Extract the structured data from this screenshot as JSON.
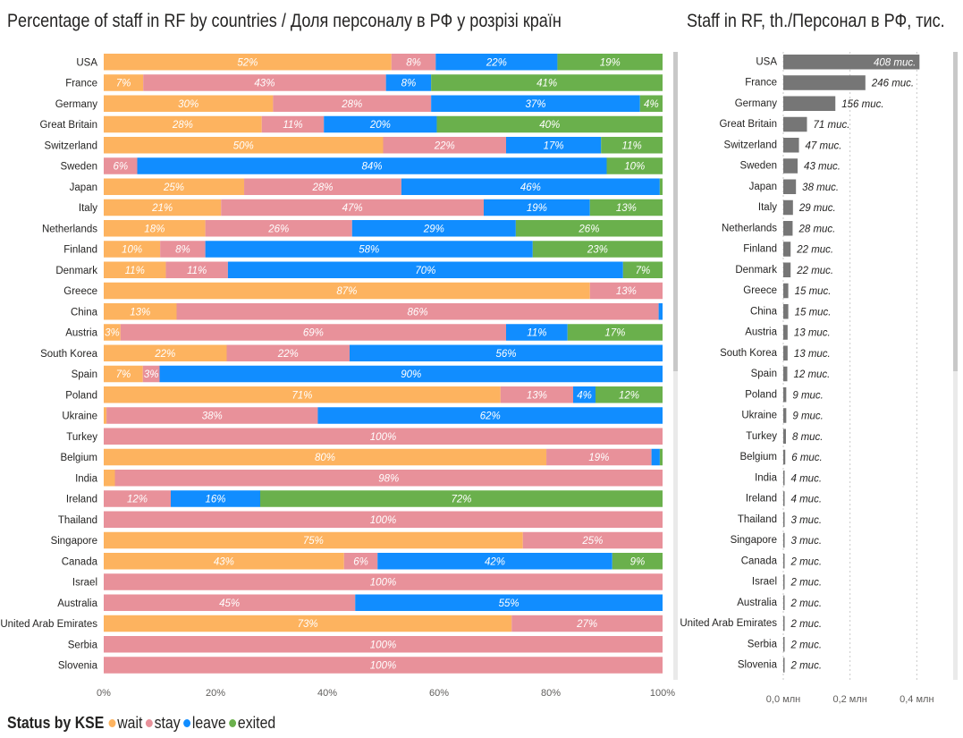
{
  "chart_data": [
    {
      "type": "bar",
      "orientation": "horizontal",
      "stacked": "100%",
      "title": "Percentage of staff in RF by countries / Доля персоналу в РФ у розрізі країн",
      "categories": [
        "USA",
        "France",
        "Germany",
        "Great Britain",
        "Switzerland",
        "Sweden",
        "Japan",
        "Italy",
        "Netherlands",
        "Finland",
        "Denmark",
        "Greece",
        "China",
        "Austria",
        "South Korea",
        "Spain",
        "Poland",
        "Ukraine",
        "Turkey",
        "Belgium",
        "India",
        "Ireland",
        "Thailand",
        "Singapore",
        "Canada",
        "Israel",
        "Australia",
        "United Arab Emirates",
        "Serbia",
        "Slovenia"
      ],
      "series": [
        {
          "name": "wait",
          "color": "#fdb35f",
          "values": [
            52,
            7,
            30,
            28,
            50,
            0,
            25,
            21,
            18,
            10,
            11,
            87,
            13,
            3,
            22,
            7,
            71,
            0.5,
            0,
            80,
            2,
            0,
            0,
            75,
            43,
            0,
            0,
            73,
            0,
            0
          ]
        },
        {
          "name": "stay",
          "color": "#e8919a",
          "values": [
            8,
            43,
            28,
            11,
            22,
            6,
            28,
            47,
            26,
            8,
            11,
            13,
            86,
            69,
            22,
            3,
            13,
            38,
            100,
            19,
            98,
            12,
            100,
            25,
            6,
            100,
            45,
            27,
            100,
            100
          ]
        },
        {
          "name": "leave",
          "color": "#118dff",
          "values": [
            22,
            8,
            37,
            20,
            17,
            84,
            46,
            19,
            29,
            58,
            70,
            0,
            0.7,
            11,
            56,
            90,
            4,
            62,
            0,
            1.5,
            0,
            16,
            0,
            0,
            42,
            0,
            55,
            0,
            0,
            0
          ]
        },
        {
          "name": "exited",
          "color": "#6ab04c",
          "values": [
            19,
            41,
            4,
            40,
            11,
            10,
            0.5,
            13,
            26,
            23,
            7,
            0,
            0,
            17,
            0,
            0,
            12,
            0,
            0,
            0.5,
            0,
            72,
            0,
            0,
            9,
            0,
            0,
            0,
            0,
            0
          ]
        }
      ],
      "data_labels": [
        [
          "52%",
          "8%",
          "22%",
          "19%"
        ],
        [
          "7%",
          "43%",
          "8%",
          "41%"
        ],
        [
          "30%",
          "28%",
          "37%",
          "4%"
        ],
        [
          "28%",
          "11%",
          "20%",
          "40%"
        ],
        [
          "50%",
          "22%",
          "17%",
          "11%"
        ],
        [
          "",
          "6%",
          "84%",
          "10%"
        ],
        [
          "25%",
          "28%",
          "46%",
          ""
        ],
        [
          "21%",
          "47%",
          "19%",
          "13%"
        ],
        [
          "18%",
          "26%",
          "29%",
          "26%"
        ],
        [
          "10%",
          "8%",
          "58%",
          "23%"
        ],
        [
          "11%",
          "11%",
          "70%",
          "7%"
        ],
        [
          "87%",
          "13%",
          "",
          ""
        ],
        [
          "13%",
          "86%",
          "",
          ""
        ],
        [
          "3%",
          "69%",
          "11%",
          "17%"
        ],
        [
          "22%",
          "22%",
          "56%",
          ""
        ],
        [
          "7%",
          "3%",
          "90%",
          ""
        ],
        [
          "71%",
          "13%",
          "4%",
          "12%"
        ],
        [
          "",
          "38%",
          "62%",
          ""
        ],
        [
          "",
          "100%",
          "",
          ""
        ],
        [
          "80%",
          "19%",
          "",
          ""
        ],
        [
          "",
          "98%",
          "",
          ""
        ],
        [
          "",
          "12%",
          "16%",
          "72%"
        ],
        [
          "",
          "100%",
          "",
          ""
        ],
        [
          "75%",
          "25%",
          "",
          ""
        ],
        [
          "43%",
          "6%",
          "42%",
          "9%"
        ],
        [
          "",
          "100%",
          "",
          ""
        ],
        [
          "",
          "45%",
          "55%",
          ""
        ],
        [
          "73%",
          "27%",
          "",
          ""
        ],
        [
          "",
          "100%",
          "",
          ""
        ],
        [
          "",
          "100%",
          "",
          ""
        ]
      ],
      "x_ticks": [
        "0%",
        "20%",
        "40%",
        "60%",
        "80%",
        "100%"
      ],
      "xlim": [
        0,
        100
      ],
      "legend_title": "Status by KSE",
      "legend_position": "bottom-left"
    },
    {
      "type": "bar",
      "orientation": "horizontal",
      "title": "Staff in RF, th./Персонал в РФ, тис.",
      "color": "#767676",
      "categories": [
        "USA",
        "France",
        "Germany",
        "Great Britain",
        "Switzerland",
        "Sweden",
        "Japan",
        "Italy",
        "Netherlands",
        "Finland",
        "Denmark",
        "Greece",
        "China",
        "Austria",
        "South Korea",
        "Spain",
        "Poland",
        "Ukraine",
        "Turkey",
        "Belgium",
        "India",
        "Ireland",
        "Thailand",
        "Singapore",
        "Canada",
        "Israel",
        "Australia",
        "United Arab Emirates",
        "Serbia",
        "Slovenia"
      ],
      "values": [
        408,
        246,
        156,
        71,
        47,
        43,
        38,
        29,
        28,
        22,
        22,
        15,
        15,
        13,
        13,
        12,
        9,
        9,
        8,
        6,
        4,
        4,
        3,
        3,
        2,
        2,
        2,
        2,
        2,
        2
      ],
      "data_labels": [
        "408 тис.",
        "246 тис.",
        "156 тис.",
        "71 тис.",
        "47 тис.",
        "43 тис.",
        "38 тис.",
        "29 тис.",
        "28 тис.",
        "22 тис.",
        "22 тис.",
        "15 тис.",
        "15 тис.",
        "13 тис.",
        "13 тис.",
        "12 тис.",
        "9 тис.",
        "9 тис.",
        "8 тис.",
        "6 тис.",
        "4 тис.",
        "4 тис.",
        "3 тис.",
        "3 тис.",
        "2 тис.",
        "2 тис.",
        "2 тис.",
        "2 тис.",
        "2 тис.",
        "2 тис."
      ],
      "unit": "thousand",
      "x_ticks": [
        "0,0 млн",
        "0,2 млн",
        "0,4 млн"
      ],
      "xlim": [
        0,
        450
      ],
      "grid": true
    }
  ]
}
